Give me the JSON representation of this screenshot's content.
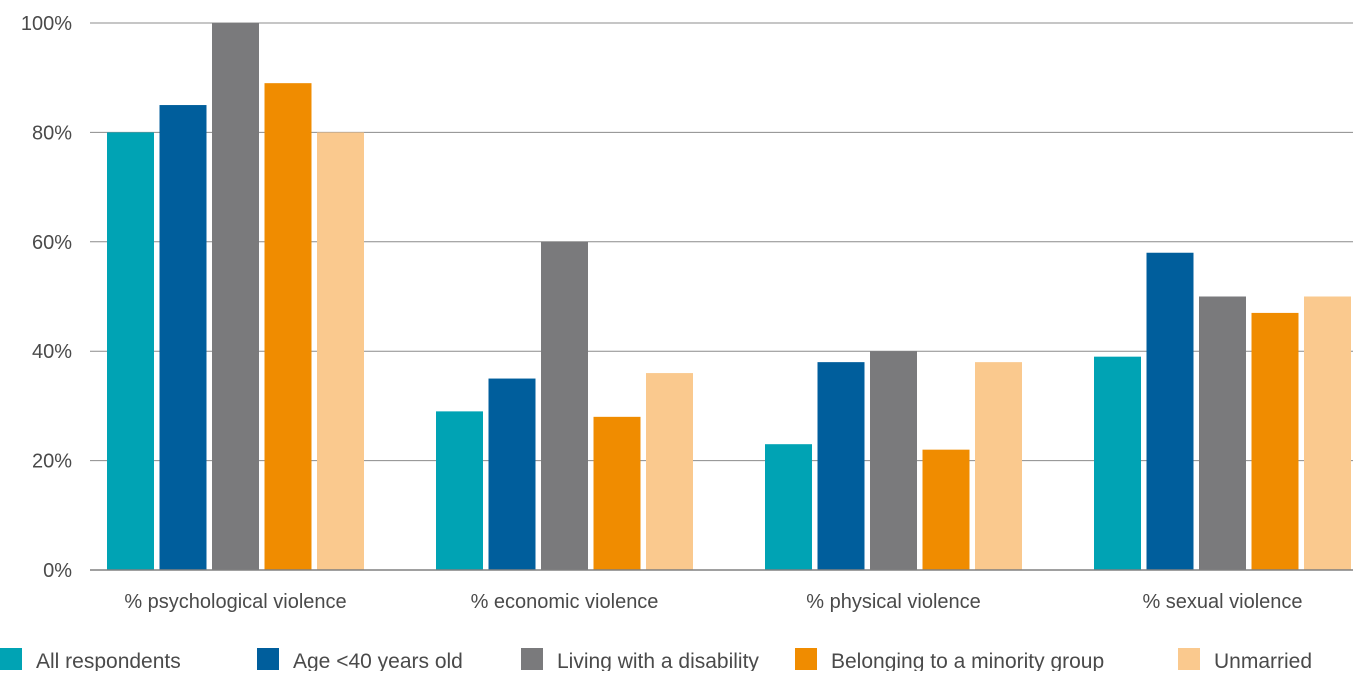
{
  "chart_data": {
    "type": "bar",
    "title": "",
    "xlabel": "",
    "ylabel": "",
    "ylim": [
      0,
      100
    ],
    "yticks": [
      {
        "value": 0,
        "label": "0%"
      },
      {
        "value": 20,
        "label": "20%"
      },
      {
        "value": 40,
        "label": "40%"
      },
      {
        "value": 60,
        "label": "60%"
      },
      {
        "value": 80,
        "label": "80%"
      },
      {
        "value": 100,
        "label": "100%"
      }
    ],
    "grid": true,
    "legend_position": "bottom",
    "categories": [
      "% psychological violence",
      "% economic violence",
      "% physical violence",
      "% sexual violence"
    ],
    "series": [
      {
        "name": "All respondents",
        "color": "#00A3B4",
        "values": [
          80,
          29,
          23,
          39
        ]
      },
      {
        "name": "Age <40 years old",
        "color": "#005E9C",
        "values": [
          85,
          35,
          38,
          58
        ]
      },
      {
        "name": "Living with a disability",
        "color": "#7A7A7C",
        "values": [
          100,
          60,
          40,
          50
        ]
      },
      {
        "name": "Belonging to a minority group",
        "color": "#F08C00",
        "values": [
          89,
          28,
          22,
          47
        ]
      },
      {
        "name": "Unmarried",
        "color": "#FAC98E",
        "values": [
          80,
          36,
          38,
          50
        ]
      }
    ],
    "axis_color": "#808080",
    "gridline_color": "#8c8c8c",
    "text_color": "#4a4a4a"
  }
}
